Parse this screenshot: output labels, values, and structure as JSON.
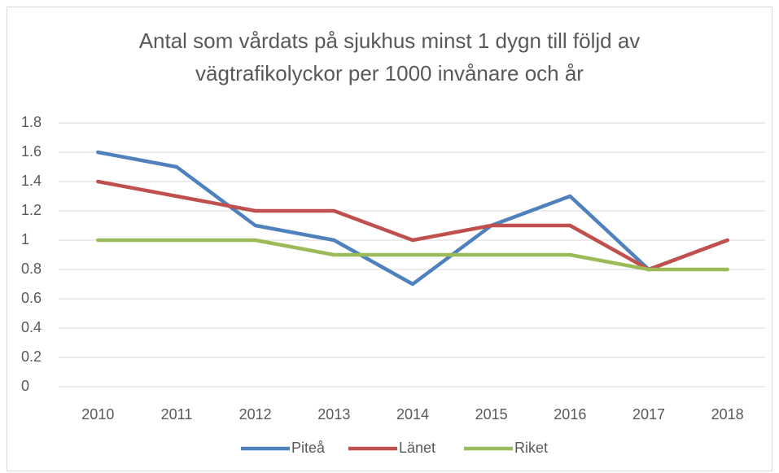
{
  "chart_data": {
    "type": "line",
    "title": "Antal som vårdats på sjukhus minst 1 dygn till följd av\nvägtrafikolyckor per 1000 invånare och år",
    "categories": [
      "2010",
      "2011",
      "2012",
      "2013",
      "2014",
      "2015",
      "2016",
      "2017",
      "2018"
    ],
    "series": [
      {
        "name": "Piteå",
        "color": "#4f81bd",
        "values": [
          1.6,
          1.5,
          1.1,
          1.0,
          0.7,
          1.1,
          1.3,
          0.8,
          1.0
        ]
      },
      {
        "name": "Länet",
        "color": "#c0504d",
        "values": [
          1.4,
          1.3,
          1.2,
          1.2,
          1.0,
          1.1,
          1.1,
          0.8,
          1.0
        ]
      },
      {
        "name": "Riket",
        "color": "#9bbb59",
        "values": [
          1.0,
          1.0,
          1.0,
          0.9,
          0.9,
          0.9,
          0.9,
          0.8,
          0.8
        ]
      }
    ],
    "ylim": [
      0,
      1.8
    ],
    "yticks": [
      0,
      0.2,
      0.4,
      0.6,
      0.8,
      1,
      1.2,
      1.4,
      1.6,
      1.8
    ],
    "grid": true,
    "legend": "bottom"
  }
}
